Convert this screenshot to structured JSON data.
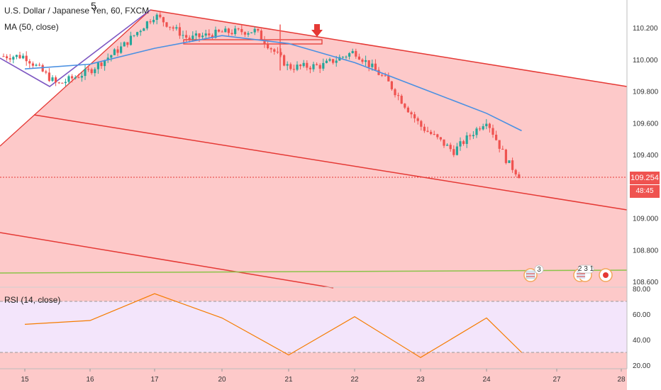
{
  "header": {
    "title": "U.S. Dollar / Japanese Yen, 60, FXCM",
    "indicator": "MA (50, close)",
    "wave_label": "5"
  },
  "price_axis": {
    "ticks": [
      "110.200",
      "110.000",
      "109.800",
      "109.600",
      "109.400",
      "109.000",
      "108.800",
      "108.600"
    ],
    "current_price": "109.254",
    "countdown": "48:45"
  },
  "rsi": {
    "label": "RSI (14, close)",
    "ticks": [
      "80.00",
      "60.00",
      "40.00",
      "20.00"
    ],
    "upper_band": 70,
    "lower_band": 30
  },
  "time_axis": {
    "ticks": [
      "15",
      "16",
      "17",
      "20",
      "21",
      "22",
      "23",
      "24",
      "27",
      "28"
    ]
  },
  "events": {
    "usd_count": "3",
    "cluster_label": "2 3 1"
  },
  "colors": {
    "channel_fill": "#fdc9c9",
    "channel_line": "#e53935",
    "ma_line": "#4a90e2",
    "wave_line": "#7e57c2",
    "support_line": "#8bc34a",
    "candle_up": "#26a69a",
    "candle_down": "#ef5350",
    "rsi_line": "#f57c00",
    "rsi_bg": "#f3e5fb",
    "arrow": "#e53935"
  },
  "chart_data": {
    "type": "candlestick",
    "symbol": "USDJPY",
    "timeframe": "60",
    "ylim": [
      108.58,
      110.32
    ],
    "last_price": 109.254,
    "close_path": [
      {
        "x": "15",
        "y": 110.02
      },
      {
        "x": "15.5",
        "y": 109.84
      },
      {
        "x": "16",
        "y": 109.93
      },
      {
        "x": "16.5",
        "y": 110.08
      },
      {
        "x": "17",
        "y": 110.28
      },
      {
        "x": "17.5",
        "y": 110.13
      },
      {
        "x": "20",
        "y": 110.17
      },
      {
        "x": "20.5",
        "y": 110.18
      },
      {
        "x": "21",
        "y": 109.95
      },
      {
        "x": "21.5",
        "y": 109.96
      },
      {
        "x": "22",
        "y": 110.05
      },
      {
        "x": "22.5",
        "y": 109.86
      },
      {
        "x": "23",
        "y": 109.58
      },
      {
        "x": "23.5",
        "y": 109.42
      },
      {
        "x": "24",
        "y": 109.62
      },
      {
        "x": "24.3",
        "y": 109.35
      },
      {
        "x": "24.5",
        "y": 109.254
      }
    ],
    "ma_50_path": [
      {
        "x": "15",
        "y": 109.94
      },
      {
        "x": "16",
        "y": 109.97
      },
      {
        "x": "17",
        "y": 110.07
      },
      {
        "x": "20",
        "y": 110.15
      },
      {
        "x": "21",
        "y": 110.1
      },
      {
        "x": "22",
        "y": 109.98
      },
      {
        "x": "23",
        "y": 109.82
      },
      {
        "x": "24",
        "y": 109.66
      },
      {
        "x": "24.5",
        "y": 109.55
      }
    ],
    "rsi_path": [
      {
        "x": "15",
        "y": 52
      },
      {
        "x": "16",
        "y": 55
      },
      {
        "x": "17",
        "y": 76
      },
      {
        "x": "20",
        "y": 57
      },
      {
        "x": "21",
        "y": 28
      },
      {
        "x": "22",
        "y": 58
      },
      {
        "x": "23",
        "y": 26
      },
      {
        "x": "24",
        "y": 57
      },
      {
        "x": "24.5",
        "y": 30
      }
    ]
  }
}
